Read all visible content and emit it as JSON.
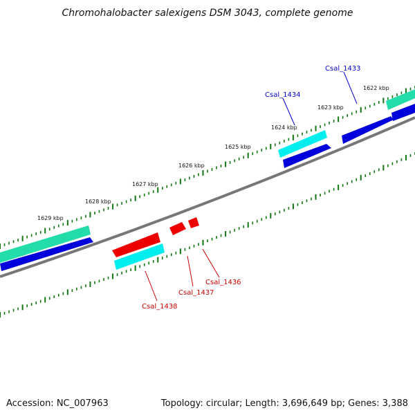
{
  "title": "Chromohalobacter salexigens DSM 3043, complete genome",
  "footer": {
    "accession": "Accession: NC_007963",
    "topology": "Topology: circular; Length: 3,696,649 bp; Genes: 3,388"
  },
  "ruler": {
    "labels": [
      "1622 kbp",
      "1623 kbp",
      "1624 kbp",
      "1625 kbp",
      "1626 kbp",
      "1627 kbp",
      "1628 kbp",
      "1629 kbp"
    ]
  },
  "genes": [
    {
      "name": "Csal_1433",
      "strand": "+",
      "color": "#0000cc"
    },
    {
      "name": "Csal_1434",
      "strand": "+",
      "color": "#0000cc"
    },
    {
      "name": "Csal_1436",
      "strand": "-",
      "color": "#cc0000"
    },
    {
      "name": "Csal_1437",
      "strand": "-",
      "color": "#cc0000"
    },
    {
      "name": "Csal_1438",
      "strand": "-",
      "color": "#cc0000"
    }
  ],
  "colors": {
    "forward_gene": "#0000dd",
    "reverse_gene": "#ee0000",
    "cds_forward": "#22ddaa",
    "cds_reverse": "#00eeee",
    "backbone": "#777777",
    "ticks": "#117711"
  }
}
